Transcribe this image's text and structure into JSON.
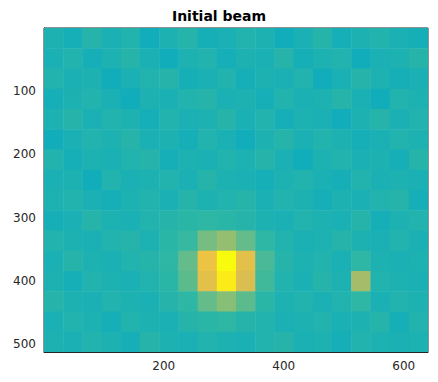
{
  "chart_data": {
    "type": "heatmap",
    "title": "Initial beam",
    "x_edges": [
      0.5,
      32.5,
      64.5,
      96.5,
      128.5,
      160.5,
      192.5,
      224.5,
      256.5,
      288.5,
      320.5,
      352.5,
      384.5,
      416.5,
      448.5,
      480.5,
      512.5,
      544.5,
      576.5,
      608.5,
      640.5
    ],
    "y_edges": [
      0.5,
      32.5,
      64.5,
      96.5,
      128.5,
      160.5,
      192.5,
      224.5,
      256.5,
      288.5,
      320.5,
      352.5,
      384.5,
      416.5,
      448.5,
      480.5,
      512.5
    ],
    "cells": [
      [
        0.56,
        0.54,
        0.58,
        0.55,
        0.57,
        0.53,
        0.56,
        0.58,
        0.54,
        0.55,
        0.57,
        0.56,
        0.53,
        0.55,
        0.58,
        0.54,
        0.56,
        0.57,
        0.55,
        0.54
      ],
      [
        0.55,
        0.57,
        0.54,
        0.56,
        0.58,
        0.55,
        0.53,
        0.56,
        0.57,
        0.54,
        0.56,
        0.55,
        0.58,
        0.54,
        0.56,
        0.57,
        0.53,
        0.55,
        0.56,
        0.58
      ],
      [
        0.57,
        0.55,
        0.56,
        0.53,
        0.55,
        0.57,
        0.58,
        0.54,
        0.55,
        0.57,
        0.54,
        0.56,
        0.55,
        0.57,
        0.53,
        0.55,
        0.58,
        0.56,
        0.54,
        0.55
      ],
      [
        0.54,
        0.56,
        0.57,
        0.55,
        0.53,
        0.56,
        0.55,
        0.57,
        0.58,
        0.55,
        0.56,
        0.54,
        0.57,
        0.55,
        0.56,
        0.58,
        0.55,
        0.53,
        0.57,
        0.56
      ],
      [
        0.56,
        0.58,
        0.55,
        0.57,
        0.56,
        0.54,
        0.57,
        0.55,
        0.56,
        0.58,
        0.55,
        0.57,
        0.54,
        0.56,
        0.55,
        0.53,
        0.56,
        0.58,
        0.55,
        0.57
      ],
      [
        0.53,
        0.55,
        0.57,
        0.56,
        0.58,
        0.55,
        0.56,
        0.54,
        0.57,
        0.55,
        0.53,
        0.56,
        0.58,
        0.55,
        0.57,
        0.56,
        0.54,
        0.55,
        0.57,
        0.56
      ],
      [
        0.57,
        0.54,
        0.56,
        0.55,
        0.57,
        0.58,
        0.54,
        0.56,
        0.55,
        0.57,
        0.56,
        0.58,
        0.55,
        0.53,
        0.56,
        0.57,
        0.55,
        0.56,
        0.54,
        0.58
      ],
      [
        0.55,
        0.56,
        0.53,
        0.57,
        0.55,
        0.56,
        0.57,
        0.55,
        0.58,
        0.56,
        0.55,
        0.54,
        0.56,
        0.57,
        0.55,
        0.54,
        0.57,
        0.55,
        0.56,
        0.55
      ],
      [
        0.56,
        0.57,
        0.55,
        0.54,
        0.56,
        0.57,
        0.55,
        0.58,
        0.56,
        0.57,
        0.58,
        0.55,
        0.57,
        0.56,
        0.54,
        0.56,
        0.55,
        0.57,
        0.58,
        0.54
      ],
      [
        0.54,
        0.55,
        0.58,
        0.56,
        0.55,
        0.57,
        0.58,
        0.59,
        0.6,
        0.59,
        0.58,
        0.56,
        0.55,
        0.57,
        0.56,
        0.55,
        0.58,
        0.54,
        0.56,
        0.57
      ],
      [
        0.57,
        0.56,
        0.55,
        0.57,
        0.58,
        0.56,
        0.59,
        0.61,
        0.68,
        0.72,
        0.66,
        0.6,
        0.57,
        0.55,
        0.56,
        0.58,
        0.56,
        0.55,
        0.57,
        0.55
      ],
      [
        0.55,
        0.58,
        0.56,
        0.55,
        0.57,
        0.58,
        0.6,
        0.66,
        0.86,
        1.0,
        0.84,
        0.63,
        0.58,
        0.56,
        0.57,
        0.55,
        0.6,
        0.56,
        0.55,
        0.56
      ],
      [
        0.56,
        0.54,
        0.57,
        0.56,
        0.55,
        0.57,
        0.59,
        0.65,
        0.84,
        0.97,
        0.82,
        0.62,
        0.57,
        0.55,
        0.58,
        0.56,
        0.74,
        0.57,
        0.56,
        0.55
      ],
      [
        0.58,
        0.56,
        0.55,
        0.57,
        0.56,
        0.55,
        0.58,
        0.6,
        0.66,
        0.7,
        0.65,
        0.59,
        0.56,
        0.57,
        0.55,
        0.57,
        0.6,
        0.55,
        0.57,
        0.56
      ],
      [
        0.55,
        0.57,
        0.56,
        0.54,
        0.57,
        0.56,
        0.55,
        0.58,
        0.59,
        0.6,
        0.58,
        0.57,
        0.55,
        0.56,
        0.57,
        0.55,
        0.56,
        0.58,
        0.54,
        0.57
      ],
      [
        0.56,
        0.55,
        0.57,
        0.56,
        0.54,
        0.58,
        0.56,
        0.55,
        0.57,
        0.56,
        0.55,
        0.57,
        0.58,
        0.55,
        0.56,
        0.54,
        0.57,
        0.56,
        0.55,
        0.56
      ]
    ],
    "clim": [
      0,
      1
    ],
    "xlim": [
      0.5,
      640.5
    ],
    "xticks": [
      200,
      400,
      600
    ],
    "ylim": [
      512.5,
      0.5
    ],
    "yticks": [
      100,
      200,
      300,
      400,
      500
    ],
    "grid": false
  }
}
